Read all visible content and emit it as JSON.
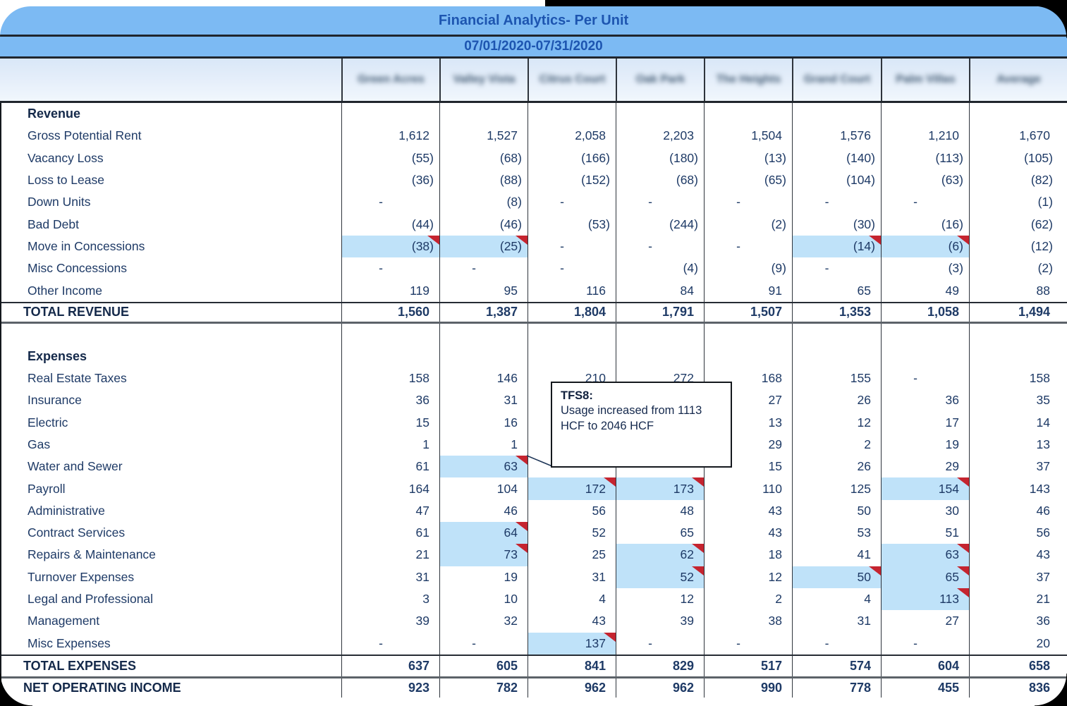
{
  "title": "Financial Analytics- Per Unit",
  "date_range": "07/01/2020-07/31/2020",
  "columns": [
    "Green Acres",
    "Valley Vista",
    "Citrus Court",
    "Oak Park",
    "The Heights",
    "Grand Court",
    "Palm Villas",
    "Average"
  ],
  "columns_note": "blurred-redacted",
  "tooltip": {
    "id": "TFS8:",
    "text": "Usage increased from 1113 HCF to 2046 HCF"
  },
  "colors": {
    "bar_blue": "#7cbaf3",
    "bar_text_blue": "#1d55b0",
    "cell_highlight": "#bfe2f9",
    "comment_marker_red": "#c5242f",
    "text_navy": "#1e3a66"
  },
  "rows": [
    {
      "type": "section",
      "label": "Revenue"
    },
    {
      "type": "data",
      "label": "Gross Potential Rent",
      "values": [
        "1,612",
        "1,527",
        "2,058",
        "2,203",
        "1,504",
        "1,576",
        "1,210",
        "1,670"
      ]
    },
    {
      "type": "data",
      "label": "Vacancy Loss",
      "values": [
        "(55)",
        "(68)",
        "(166)",
        "(180)",
        "(13)",
        "(140)",
        "(113)",
        "(105)"
      ]
    },
    {
      "type": "data",
      "label": "Loss to Lease",
      "values": [
        "(36)",
        "(88)",
        "(152)",
        "(68)",
        "(65)",
        "(104)",
        "(63)",
        "(82)"
      ]
    },
    {
      "type": "data",
      "label": "Down Units",
      "values": [
        "-",
        "(8)",
        "-",
        "-",
        "-",
        "-",
        "-",
        "(1)"
      ]
    },
    {
      "type": "data",
      "label": "Bad Debt",
      "values": [
        "(44)",
        "(46)",
        "(53)",
        "(244)",
        "(2)",
        "(30)",
        "(16)",
        "(62)"
      ]
    },
    {
      "type": "data",
      "label": "Move in Concessions",
      "values": [
        "(38)",
        "(25)",
        "-",
        "-",
        "-",
        "(14)",
        "(6)",
        "(12)"
      ],
      "flags": {
        "0": "hm",
        "1": "hm",
        "5": "hm",
        "6": "hm"
      }
    },
    {
      "type": "data",
      "label": "Misc Concessions",
      "values": [
        "-",
        "-",
        "-",
        "(4)",
        "(9)",
        "-",
        "(3)",
        "(2)"
      ]
    },
    {
      "type": "data",
      "label": "Other Income",
      "values": [
        "119",
        "95",
        "116",
        "84",
        "91",
        "65",
        "49",
        "88"
      ]
    },
    {
      "type": "total_revenue",
      "label": "TOTAL REVENUE",
      "values": [
        "1,560",
        "1,387",
        "1,804",
        "1,791",
        "1,507",
        "1,353",
        "1,058",
        "1,494"
      ]
    },
    {
      "type": "blank",
      "label": ""
    },
    {
      "type": "section",
      "label": "Expenses"
    },
    {
      "type": "data",
      "label": "Real Estate Taxes",
      "values": [
        "158",
        "146",
        "210",
        "272",
        "168",
        "155",
        "-",
        "158"
      ]
    },
    {
      "type": "data",
      "label": "Insurance",
      "values": [
        "36",
        "31",
        "",
        "",
        "27",
        "26",
        "36",
        "35"
      ]
    },
    {
      "type": "data",
      "label": "Electric",
      "values": [
        "15",
        "16",
        "",
        "",
        "13",
        "12",
        "17",
        "14"
      ]
    },
    {
      "type": "data",
      "label": "Gas",
      "values": [
        "1",
        "1",
        "",
        "",
        "29",
        "2",
        "19",
        "13"
      ]
    },
    {
      "type": "data",
      "label": "Water and Sewer",
      "values": [
        "61",
        "63",
        "",
        "",
        "15",
        "26",
        "29",
        "37"
      ],
      "flags": {
        "1": "hm"
      }
    },
    {
      "type": "data",
      "label": "Payroll",
      "values": [
        "164",
        "104",
        "172",
        "173",
        "110",
        "125",
        "154",
        "143"
      ],
      "flags": {
        "2": "hm",
        "3": "hm",
        "6": "hm"
      }
    },
    {
      "type": "data",
      "label": "Administrative",
      "values": [
        "47",
        "46",
        "56",
        "48",
        "43",
        "50",
        "30",
        "46"
      ]
    },
    {
      "type": "data",
      "label": "Contract Services",
      "values": [
        "61",
        "64",
        "52",
        "65",
        "43",
        "53",
        "51",
        "56"
      ],
      "flags": {
        "1": "hm"
      }
    },
    {
      "type": "data",
      "label": "Repairs & Maintenance",
      "values": [
        "21",
        "73",
        "25",
        "62",
        "18",
        "41",
        "63",
        "43"
      ],
      "flags": {
        "1": "hm",
        "3": "hm",
        "6": "hm"
      }
    },
    {
      "type": "data",
      "label": "Turnover Expenses",
      "values": [
        "31",
        "19",
        "31",
        "52",
        "12",
        "50",
        "65",
        "37"
      ],
      "flags": {
        "3": "hm",
        "5": "hm",
        "6": "hm"
      }
    },
    {
      "type": "data",
      "label": "Legal and Professional",
      "values": [
        "3",
        "10",
        "4",
        "12",
        "2",
        "4",
        "113",
        "21"
      ],
      "flags": {
        "6": "hm"
      }
    },
    {
      "type": "data",
      "label": "Management",
      "values": [
        "39",
        "32",
        "43",
        "39",
        "38",
        "31",
        "27",
        "36"
      ]
    },
    {
      "type": "data",
      "label": "Misc Expenses",
      "values": [
        "-",
        "-",
        "137",
        "-",
        "-",
        "-",
        "-",
        "20"
      ],
      "flags": {
        "2": "hm"
      }
    },
    {
      "type": "total_expenses",
      "label": "TOTAL EXPENSES",
      "values": [
        "637",
        "605",
        "841",
        "829",
        "517",
        "574",
        "604",
        "658"
      ]
    },
    {
      "type": "noi",
      "label": "NET OPERATING INCOME",
      "values": [
        "923",
        "782",
        "962",
        "962",
        "990",
        "778",
        "455",
        "836"
      ]
    }
  ]
}
